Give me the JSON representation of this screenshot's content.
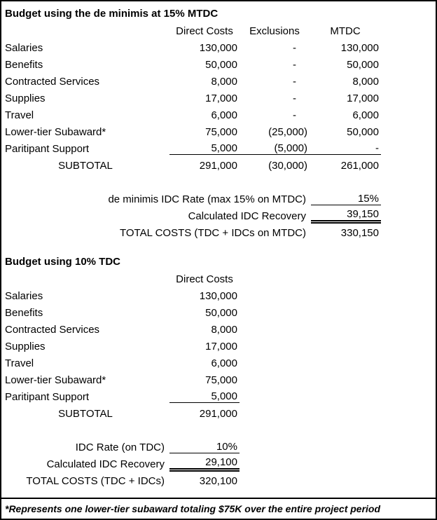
{
  "footnote": "*Represents one lower-tier subaward totaling $75K over the entire project period",
  "mtdc_section": {
    "title": "Budget using the de minimis at 15% MTDC",
    "columns": [
      "Direct Costs",
      "Exclusions",
      "MTDC"
    ],
    "rows": [
      {
        "label": "Salaries",
        "direct": "130,000",
        "exclusions": "-",
        "mtdc": "130,000"
      },
      {
        "label": "Benefits",
        "direct": "50,000",
        "exclusions": "-",
        "mtdc": "50,000"
      },
      {
        "label": "Contracted Services",
        "direct": "8,000",
        "exclusions": "-",
        "mtdc": "8,000"
      },
      {
        "label": "Supplies",
        "direct": "17,000",
        "exclusions": "-",
        "mtdc": "17,000"
      },
      {
        "label": "Travel",
        "direct": "6,000",
        "exclusions": "-",
        "mtdc": "6,000"
      },
      {
        "label": "Lower-tier Subaward*",
        "direct": "75,000",
        "exclusions": "(25,000)",
        "mtdc": "50,000"
      },
      {
        "label": "Paritipant Support",
        "direct": "5,000",
        "exclusions": "(5,000)",
        "mtdc": "-"
      }
    ],
    "subtotal": {
      "label": "SUBTOTAL",
      "direct": "291,000",
      "exclusions": "(30,000)",
      "mtdc": "261,000"
    },
    "summary": [
      {
        "label": "de minimis IDC Rate (max 15% on MTDC)",
        "value": "15%"
      },
      {
        "label": "Calculated IDC Recovery",
        "value": "39,150"
      },
      {
        "label": "TOTAL COSTS (TDC + IDCs on MTDC)",
        "value": "330,150"
      }
    ]
  },
  "tdc_section": {
    "title": "Budget using 10% TDC",
    "columns": [
      "Direct Costs"
    ],
    "rows": [
      {
        "label": "Salaries",
        "direct": "130,000"
      },
      {
        "label": "Benefits",
        "direct": "50,000"
      },
      {
        "label": "Contracted Services",
        "direct": "8,000"
      },
      {
        "label": "Supplies",
        "direct": "17,000"
      },
      {
        "label": "Travel",
        "direct": "6,000"
      },
      {
        "label": "Lower-tier Subaward*",
        "direct": "75,000"
      },
      {
        "label": "Paritipant Support",
        "direct": "5,000"
      }
    ],
    "subtotal": {
      "label": "SUBTOTAL",
      "direct": "291,000"
    },
    "summary": [
      {
        "label": "IDC Rate (on TDC)",
        "value": "10%"
      },
      {
        "label": "Calculated IDC Recovery",
        "value": "29,100"
      },
      {
        "label": "TOTAL COSTS (TDC + IDCs)",
        "value": "320,100"
      }
    ]
  }
}
